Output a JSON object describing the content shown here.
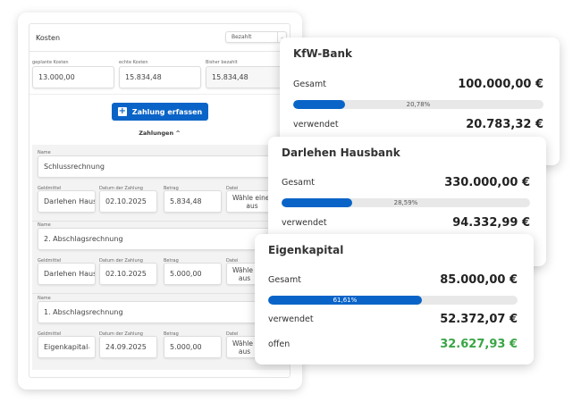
{
  "costs": {
    "title": "Kosten",
    "filter": "Bezahlt",
    "fields": [
      {
        "label": "geplante Kosten",
        "value": "13.000,00"
      },
      {
        "label": "echte Kosten",
        "value": "15.834,48"
      },
      {
        "label": "Bisher bezahlt",
        "value": "15.834,48"
      }
    ],
    "add_button": "Zahlung erfassen",
    "payments_toggle": "Zahlungen",
    "labels": {
      "name": "Name",
      "source": "Geldmittel",
      "date": "Datum der Zahlung",
      "amount": "Betrag",
      "file": "Datei",
      "file_placeholder_1": "Wähle eine D",
      "file_placeholder_2": "aus"
    },
    "payments": [
      {
        "name": "Schlussrechnung",
        "source": "Darlehen Hausbr",
        "date": "02.10.2025",
        "amount": "5.834,48"
      },
      {
        "name": "2. Abschlagsrechnung",
        "source": "Darlehen Hausbr",
        "date": "02.10.2025",
        "amount": "5.000,00"
      },
      {
        "name": "1. Abschlagsrechnung",
        "source": "Eigenkapital",
        "date": "24.09.2025",
        "amount": "5.000,00"
      }
    ]
  },
  "funds": [
    {
      "title": "KfW-Bank",
      "total_label": "Gesamt",
      "total": "100.000,00 €",
      "percent": 20.78,
      "percent_label": "20,78%",
      "used_label": "verwendet",
      "used": "20.783,32 €"
    },
    {
      "title": "Darlehen Hausbank",
      "total_label": "Gesamt",
      "total": "330.000,00 €",
      "percent": 28.59,
      "percent_label": "28,59%",
      "used_label": "verwendet",
      "used": "94.332,99 €"
    },
    {
      "title": "Eigenkapital",
      "total_label": "Gesamt",
      "total": "85.000,00 €",
      "percent": 61.61,
      "percent_label": "61,61%",
      "used_label": "verwendet",
      "used": "52.372,07 €",
      "open_label": "offen",
      "open": "32.627,93 €"
    }
  ],
  "colors": {
    "accent": "#0a64c8",
    "positive": "#3aa545"
  }
}
